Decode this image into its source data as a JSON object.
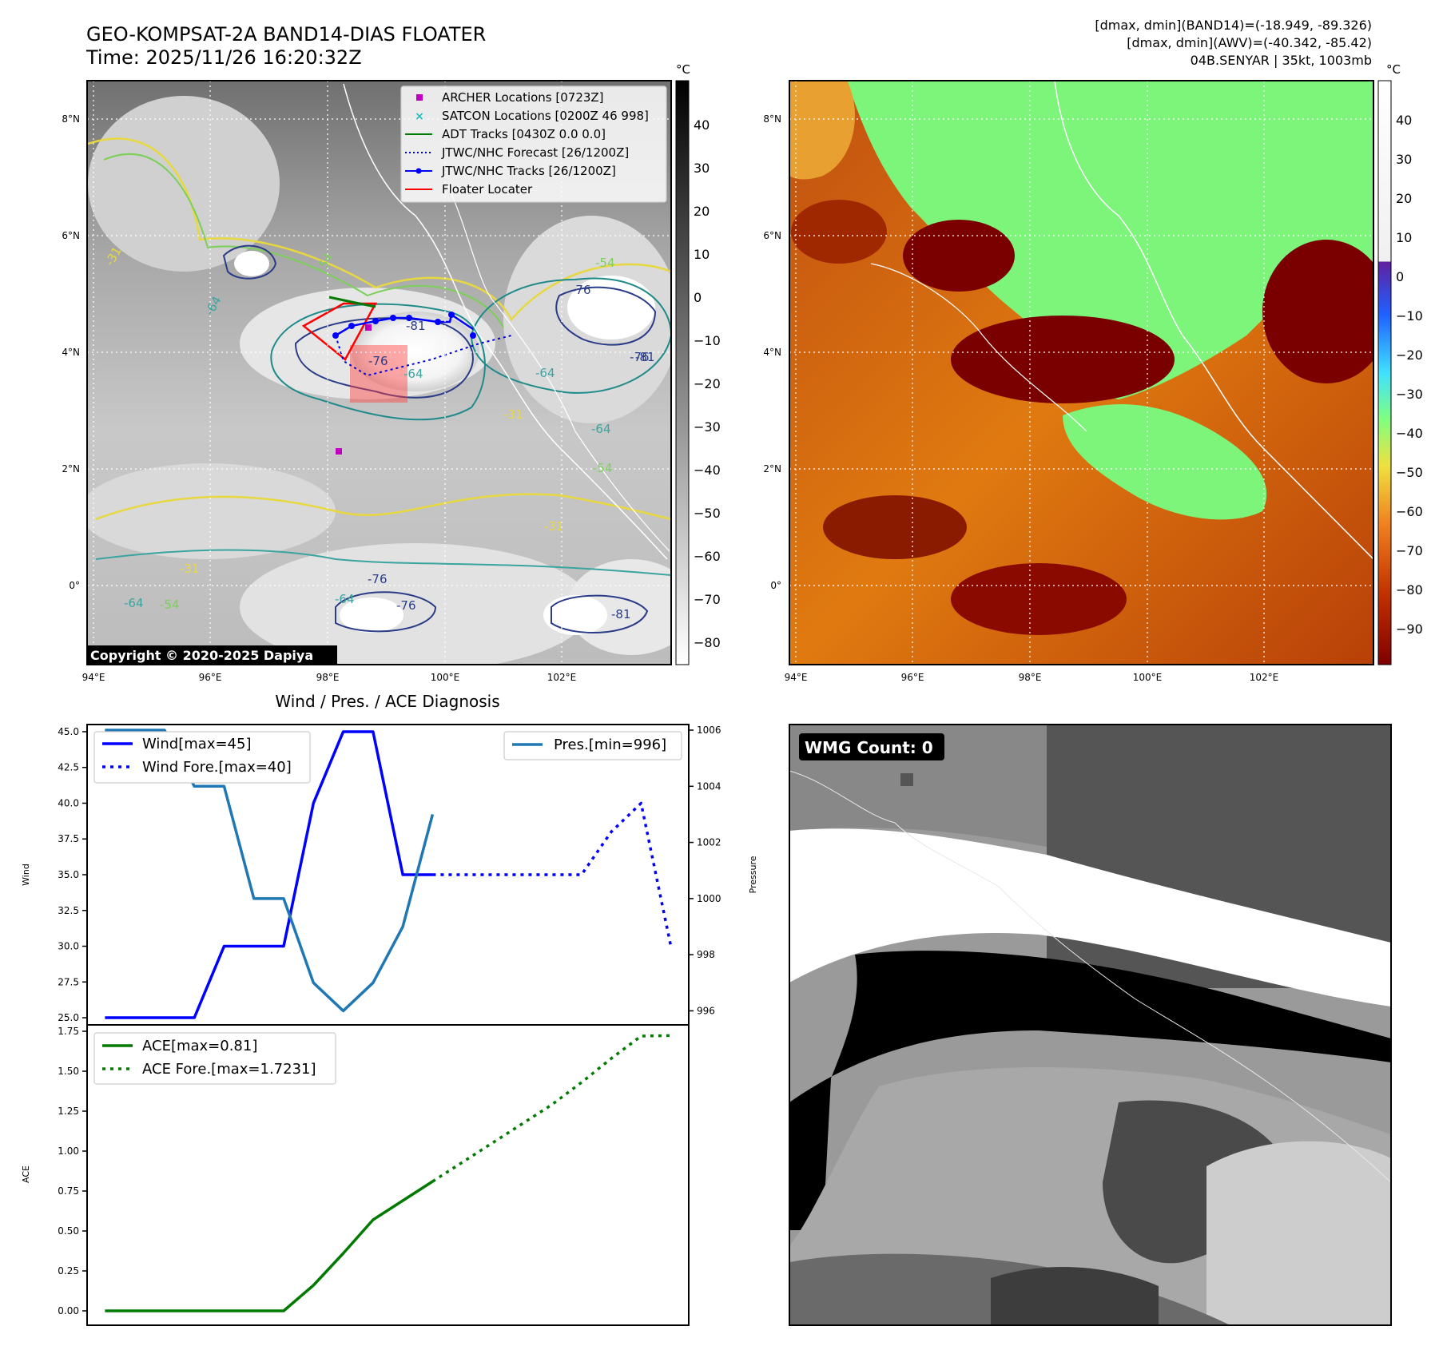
{
  "header": {
    "title": "GEO-KOMPSAT-2A BAND14-DIAS FLOATER",
    "time": "Time: 2025/11/26 16:20:32Z",
    "dmax_band14": "[dmax, dmin](BAND14)=(-18.949, -89.326)",
    "dmax_awv": "[dmax, dmin](AWV)=(-40.342, -85.42)",
    "storm": "04B.SENYAR | 35kt, 1003mb"
  },
  "map": {
    "lon_ticks": [
      "94°E",
      "96°E",
      "98°E",
      "100°E",
      "102°E"
    ],
    "lat_ticks": [
      "8°N",
      "6°N",
      "4°N",
      "2°N",
      "0°"
    ],
    "copyright": "Copyright © 2020-2025 Dapiya",
    "legend": [
      {
        "label": "ARCHER Locations [0723Z]",
        "color": "#c000c0",
        "kind": "square"
      },
      {
        "label": "SATCON Locations [0200Z 46 998]",
        "color": "#20c0c0",
        "kind": "x"
      },
      {
        "label": "ADT Tracks [0430Z 0.0 0.0]",
        "color": "#007a00",
        "kind": "line"
      },
      {
        "label": "JTWC/NHC Forecast [26/1200Z]",
        "color": "#0000dd",
        "kind": "dotted"
      },
      {
        "label": "JTWC/NHC Tracks [26/1200Z]",
        "color": "#0000ff",
        "kind": "line-dot"
      },
      {
        "label": "Floater Locater",
        "color": "#ff0000",
        "kind": "line"
      }
    ],
    "contour_labels": [
      "-31",
      "-54",
      "-64",
      "-76",
      "-81",
      "-64",
      "-54",
      "-31",
      "-76",
      "-64",
      "-76",
      "-64",
      "-81",
      "-31",
      "-54",
      "-64",
      "-76",
      "-54",
      "-31",
      "-81",
      "-76",
      "-64"
    ]
  },
  "colorbar_left": {
    "unit": "°C",
    "ticks": [
      "40",
      "30",
      "20",
      "10",
      "0",
      "−10",
      "−20",
      "−30",
      "−40",
      "−50",
      "−60",
      "−70",
      "−80"
    ]
  },
  "colorbar_right": {
    "unit": "°C",
    "ticks": [
      "40",
      "30",
      "20",
      "10",
      "0",
      "−10",
      "−20",
      "−30",
      "−40",
      "−50",
      "−60",
      "−70",
      "−80",
      "−90"
    ]
  },
  "diagnosis": {
    "title": "Wind / Pres. / ACE Diagnosis",
    "wind_axis_label": "Wind",
    "pressure_axis_label": "Pressure",
    "ace_axis_label": "ACE",
    "wind_ticks": [
      "45.0",
      "42.5",
      "40.0",
      "37.5",
      "35.0",
      "32.5",
      "30.0",
      "27.5",
      "25.0"
    ],
    "pressure_ticks": [
      "1006",
      "1004",
      "1002",
      "1000",
      "998",
      "996"
    ],
    "ace_ticks": [
      "1.75",
      "1.50",
      "1.25",
      "1.00",
      "0.75",
      "0.50",
      "0.25",
      "0.00"
    ],
    "legend_wind": "Wind[max=45]",
    "legend_wind_fore": "Wind Fore.[max=40]",
    "legend_pres": "Pres.[min=996]",
    "legend_ace": "ACE[max=0.81]",
    "legend_ace_fore": "ACE Fore.[max=1.7231]"
  },
  "wmg": {
    "label": "WMG Count: 0"
  },
  "chart_data": [
    {
      "type": "line",
      "title": "Wind / Pres. / ACE Diagnosis",
      "ylabel": "Wind",
      "ylim": [
        24.5,
        45.5
      ],
      "x": [
        0,
        1,
        2,
        3,
        4,
        5,
        6,
        7,
        8,
        9,
        10,
        11,
        12,
        13,
        14,
        15,
        16,
        17,
        18,
        19
      ],
      "series": [
        {
          "name": "Wind[max=45]",
          "color": "#0000ff",
          "style": "solid",
          "x": [
            0,
            1,
            2,
            3,
            4,
            5,
            6,
            7,
            8,
            9,
            10,
            11
          ],
          "values": [
            25,
            25,
            25,
            25,
            30,
            30,
            30,
            40,
            45,
            45,
            35,
            35
          ]
        },
        {
          "name": "Wind Fore.[max=40]",
          "color": "#0000ff",
          "style": "dotted",
          "x": [
            11,
            12,
            13,
            14,
            15,
            16,
            17,
            18,
            19
          ],
          "values": [
            35,
            35,
            35,
            35,
            35,
            35,
            38,
            40,
            30
          ]
        }
      ]
    },
    {
      "type": "line",
      "ylabel": "Pressure",
      "ylim": [
        995.5,
        1006.2
      ],
      "series": [
        {
          "name": "Pres.[min=996]",
          "color": "#1f77b4",
          "style": "solid",
          "x": [
            0,
            1,
            2,
            3,
            4,
            5,
            6,
            7,
            8,
            9,
            10,
            11
          ],
          "values": [
            1006,
            1006,
            1006,
            1004,
            1004,
            1000,
            1000,
            997,
            996,
            997,
            999,
            1003
          ]
        }
      ]
    },
    {
      "type": "line",
      "ylabel": "ACE",
      "ylim": [
        -0.09,
        1.79
      ],
      "series": [
        {
          "name": "ACE[max=0.81]",
          "color": "#007a00",
          "style": "solid",
          "x": [
            0,
            1,
            2,
            3,
            4,
            5,
            6,
            7,
            8,
            9,
            10,
            11
          ],
          "values": [
            0,
            0,
            0,
            0,
            0,
            0,
            0,
            0.16,
            0.36,
            0.57,
            0.69,
            0.81
          ]
        },
        {
          "name": "ACE Fore.[max=1.7231]",
          "color": "#007a00",
          "style": "dotted",
          "x": [
            11,
            12,
            13,
            14,
            15,
            16,
            17,
            18,
            19
          ],
          "values": [
            0.81,
            0.93,
            1.05,
            1.17,
            1.29,
            1.43,
            1.58,
            1.72,
            1.7231
          ]
        }
      ]
    }
  ],
  "colors": {
    "wind": "#0000ff",
    "pressure": "#1f77b4",
    "ace": "#007a00",
    "floater": "#ff0000",
    "archer": "#c000c0"
  }
}
